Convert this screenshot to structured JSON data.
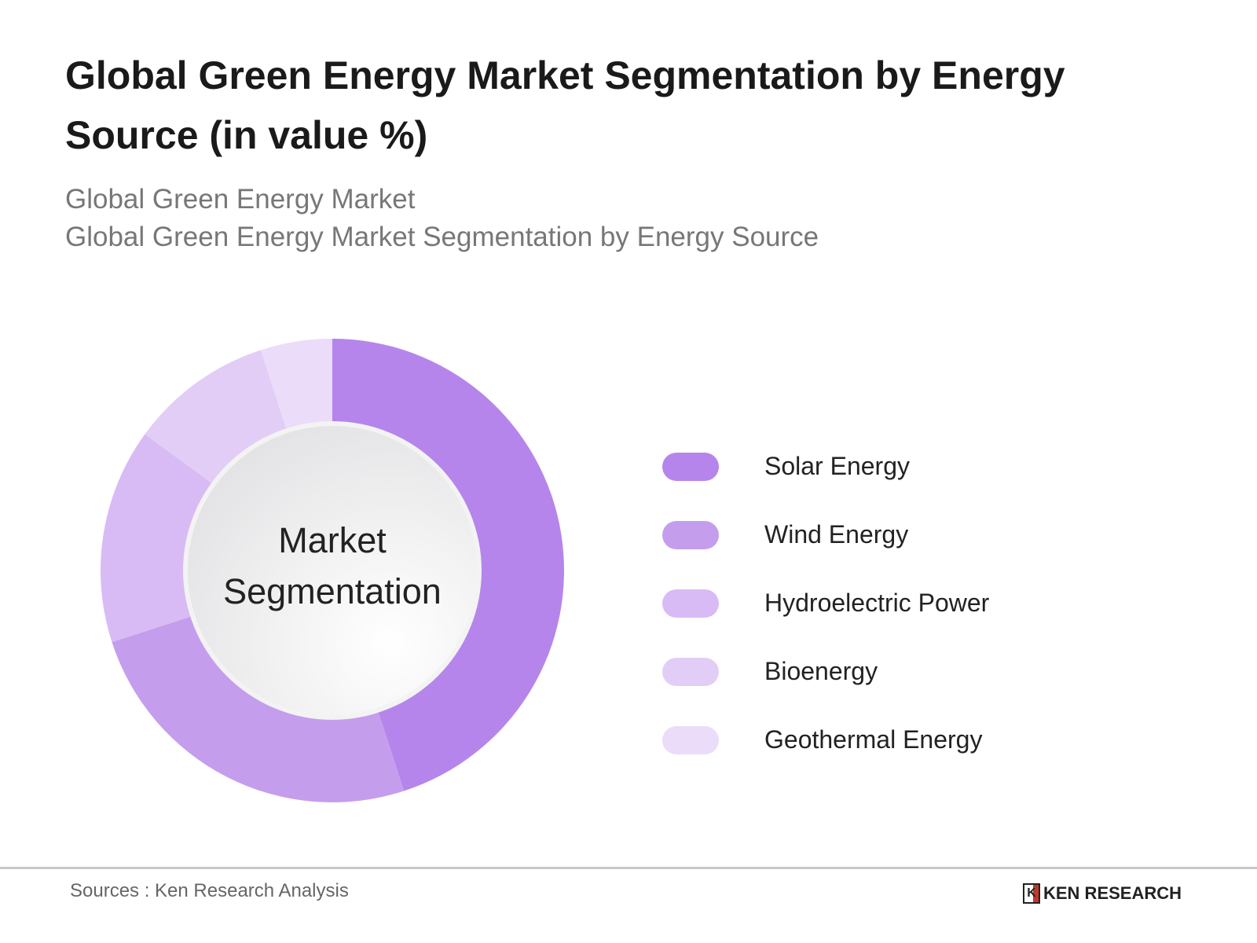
{
  "header": {
    "title": "Global Green Energy Market Segmentation by Energy Source (in value %)",
    "subtitle1": "Global Green Energy Market",
    "subtitle2": "Global Green Energy Market Segmentation by Energy Source"
  },
  "chart_data": {
    "type": "pie",
    "variant": "donut",
    "center_label": "Market Segmentation",
    "categories": [
      "Solar Energy",
      "Wind Energy",
      "Hydroelectric Power",
      "Bioenergy",
      "Geothermal Energy"
    ],
    "values": [
      45,
      25,
      15,
      10,
      5
    ],
    "colors": [
      "#b585eb",
      "#c59ded",
      "#d8bbf4",
      "#e2cdf7",
      "#ebdcf9"
    ],
    "legend_position": "right"
  },
  "footer": {
    "source": "Sources : Ken Research Analysis",
    "logo_text": "KEN RESEARCH"
  }
}
